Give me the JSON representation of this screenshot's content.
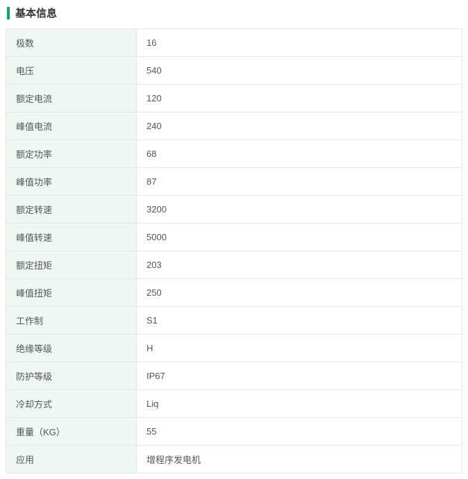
{
  "header": {
    "title": "基本信息"
  },
  "table": {
    "type": "table",
    "label_bg_color": "#eef7f2",
    "value_bg_color": "#ffffff",
    "border_color": "#e5e5e5",
    "accent_color": "#00a878",
    "text_color": "#555555",
    "font_size": 13,
    "label_col_width": 188,
    "rows": [
      {
        "label": "极数",
        "value": "16"
      },
      {
        "label": "电压",
        "value": "540"
      },
      {
        "label": "额定电流",
        "value": "120"
      },
      {
        "label": "峰值电流",
        "value": "240"
      },
      {
        "label": "额定功率",
        "value": "68"
      },
      {
        "label": "峰值功率",
        "value": "87"
      },
      {
        "label": "额定转速",
        "value": "3200"
      },
      {
        "label": "峰值转速",
        "value": "5000"
      },
      {
        "label": "额定扭矩",
        "value": "203"
      },
      {
        "label": "峰值扭矩",
        "value": "250"
      },
      {
        "label": "工作制",
        "value": "S1"
      },
      {
        "label": "绝缘等级",
        "value": "H"
      },
      {
        "label": "防护等级",
        "value": "IP67"
      },
      {
        "label": "冷却方式",
        "value": "Liq"
      },
      {
        "label": "重量（KG）",
        "value": "55"
      },
      {
        "label": "应用",
        "value": "增程序发电机"
      }
    ]
  }
}
